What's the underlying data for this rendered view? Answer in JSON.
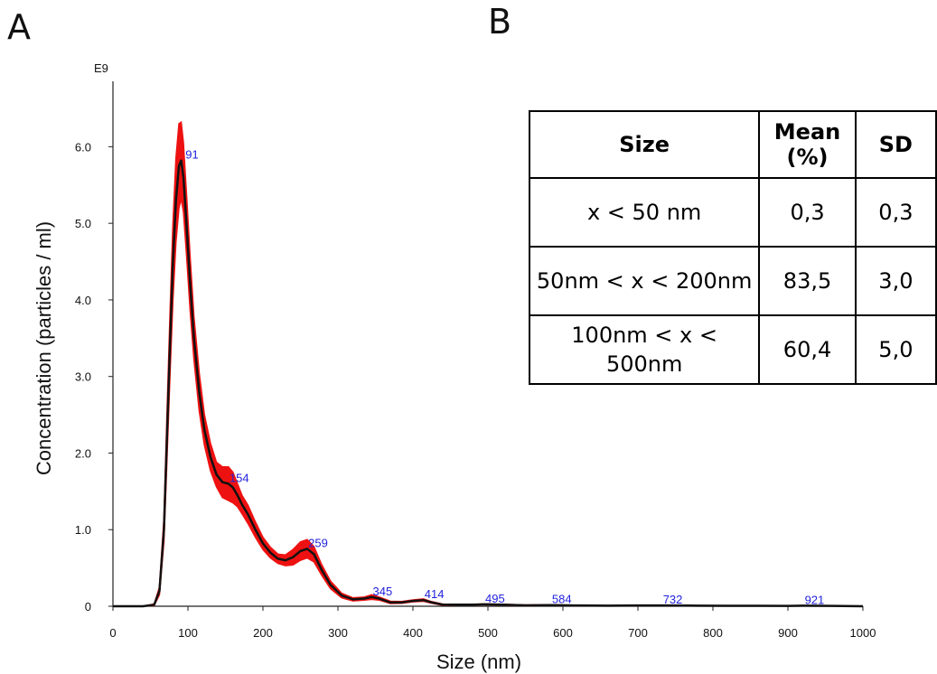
{
  "panel_labels": {
    "a": "A",
    "b": "B"
  },
  "chart_data": {
    "type": "line",
    "xlabel": "Size (nm)",
    "ylabel": "Concentration (particles / ml)",
    "y_multiplier_label": "E9",
    "xlim": [
      0,
      1000
    ],
    "ylim": [
      0,
      6.5
    ],
    "x_ticks": [
      0,
      100,
      200,
      300,
      400,
      500,
      600,
      700,
      800,
      900,
      1000
    ],
    "y_ticks": [
      0,
      1.0,
      2.0,
      3.0,
      4.0,
      5.0,
      6.0
    ],
    "x_tick_labels": [
      "0",
      "100",
      "200",
      "300",
      "400",
      "500",
      "600",
      "700",
      "800",
      "900",
      "1000"
    ],
    "y_tick_labels": [
      "0",
      "1.0",
      "2.0",
      "3.0",
      "4.0",
      "5.0",
      "6.0"
    ],
    "series": [
      {
        "color": "#111111",
        "band_color": "#ee1111",
        "x": [
          0,
          40,
          55,
          62,
          68,
          72,
          76,
          80,
          84,
          88,
          91,
          94,
          98,
          103,
          108,
          115,
          122,
          130,
          138,
          146,
          154,
          160,
          166,
          172,
          180,
          190,
          200,
          210,
          220,
          230,
          240,
          250,
          259,
          268,
          278,
          290,
          305,
          320,
          335,
          345,
          355,
          370,
          385,
          400,
          414,
          425,
          440,
          460,
          480,
          495,
          520,
          550,
          584,
          620,
          660,
          700,
          732,
          780,
          820,
          860,
          900,
          921,
          960,
          1000
        ],
        "y": [
          0,
          0,
          0.02,
          0.2,
          1.0,
          2.2,
          3.4,
          4.5,
          5.3,
          5.75,
          5.82,
          5.6,
          5.0,
          4.2,
          3.5,
          2.8,
          2.3,
          1.95,
          1.72,
          1.62,
          1.6,
          1.55,
          1.45,
          1.33,
          1.2,
          1.0,
          0.82,
          0.7,
          0.62,
          0.6,
          0.64,
          0.72,
          0.75,
          0.68,
          0.48,
          0.28,
          0.14,
          0.09,
          0.1,
          0.12,
          0.1,
          0.05,
          0.05,
          0.07,
          0.08,
          0.05,
          0.02,
          0.02,
          0.02,
          0.025,
          0.02,
          0.012,
          0.015,
          0.01,
          0.008,
          0.01,
          0.01,
          0.008,
          0.006,
          0.006,
          0.005,
          0.008,
          0.004,
          0.0
        ],
        "error": [
          0,
          0,
          0.01,
          0.05,
          0.15,
          0.3,
          0.4,
          0.5,
          0.55,
          0.55,
          0.5,
          0.45,
          0.4,
          0.35,
          0.28,
          0.25,
          0.2,
          0.18,
          0.16,
          0.2,
          0.22,
          0.2,
          0.15,
          0.12,
          0.12,
          0.1,
          0.08,
          0.07,
          0.06,
          0.07,
          0.1,
          0.12,
          0.12,
          0.1,
          0.07,
          0.05,
          0.03,
          0.02,
          0.02,
          0.03,
          0.02,
          0.015,
          0.012,
          0.012,
          0.015,
          0.01,
          0.008,
          0.005,
          0.005,
          0.005,
          0.005,
          0.004,
          0.004,
          0.003,
          0.003,
          0.003,
          0.003,
          0.002,
          0.002,
          0.002,
          0.002,
          0.002,
          0.001,
          0
        ]
      }
    ],
    "peak_labels": [
      {
        "x": 91,
        "y": 5.82,
        "text": "91"
      },
      {
        "x": 154,
        "y": 1.6,
        "text": "154"
      },
      {
        "x": 259,
        "y": 0.75,
        "text": "259"
      },
      {
        "x": 345,
        "y": 0.12,
        "text": "345"
      },
      {
        "x": 414,
        "y": 0.08,
        "text": "414"
      },
      {
        "x": 495,
        "y": 0.025,
        "text": "495"
      },
      {
        "x": 584,
        "y": 0.015,
        "text": "584"
      },
      {
        "x": 732,
        "y": 0.01,
        "text": "732"
      },
      {
        "x": 921,
        "y": 0.008,
        "text": "921"
      }
    ],
    "peak_label_color": "#2222dd"
  },
  "table": {
    "headers": [
      "Size",
      "Mean (%)",
      "SD"
    ],
    "rows": [
      {
        "size": "x < 50 nm",
        "mean": "0,3",
        "sd": "0,3"
      },
      {
        "size": "50nm < x < 200nm",
        "mean": "83,5",
        "sd": "3,0"
      },
      {
        "size": "100nm < x < 500nm",
        "mean": "60,4",
        "sd": "5,0"
      }
    ]
  }
}
